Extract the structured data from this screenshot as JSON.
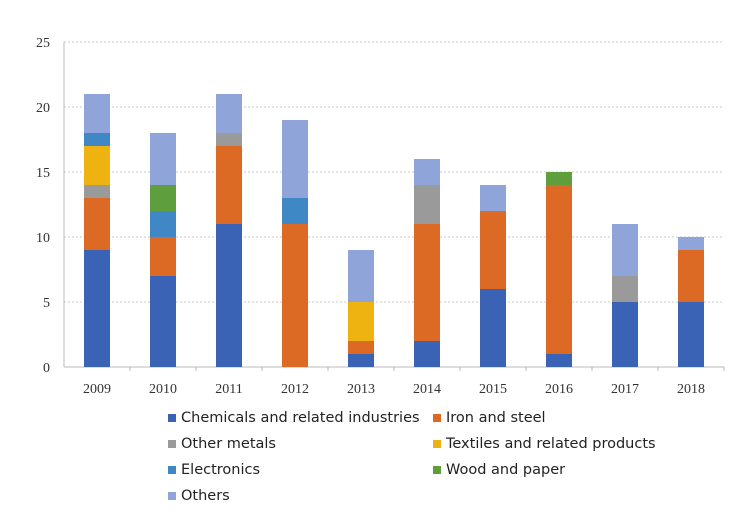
{
  "chart_data": {
    "type": "bar",
    "stacked": true,
    "categories": [
      "2009",
      "2010",
      "2011",
      "2012",
      "2013",
      "2014",
      "2015",
      "2016",
      "2017",
      "2018"
    ],
    "series": [
      {
        "name": "Chemicals and related industries",
        "color": "#3a62b5",
        "values": [
          9,
          7,
          11,
          0,
          1,
          2,
          6,
          1,
          5,
          5
        ]
      },
      {
        "name": "Iron and steel",
        "color": "#dc6a24",
        "values": [
          4,
          3,
          6,
          11,
          1,
          9,
          6,
          13,
          0,
          4
        ]
      },
      {
        "name": "Other metals",
        "color": "#9a9a9a",
        "values": [
          1,
          0,
          1,
          0,
          0,
          3,
          0,
          0,
          2,
          0
        ]
      },
      {
        "name": "Textiles and related products",
        "color": "#eeb211",
        "values": [
          3,
          0,
          0,
          0,
          3,
          0,
          0,
          0,
          0,
          0
        ]
      },
      {
        "name": "Electronics",
        "color": "#3f88c5",
        "values": [
          1,
          2,
          0,
          2,
          0,
          0,
          0,
          0,
          0,
          0
        ]
      },
      {
        "name": "Wood and paper",
        "color": "#5f9e3c",
        "values": [
          0,
          2,
          0,
          0,
          0,
          0,
          0,
          1,
          0,
          0
        ]
      },
      {
        "name": "Others",
        "color": "#8fa5d9",
        "values": [
          3,
          4,
          3,
          6,
          4,
          2,
          2,
          0,
          4,
          1
        ]
      }
    ],
    "y_ticks": [
      "0",
      "5",
      "10",
      "15",
      "20",
      "25"
    ],
    "ylim": [
      0,
      25
    ],
    "grid": true,
    "legend_position": "bottom"
  }
}
